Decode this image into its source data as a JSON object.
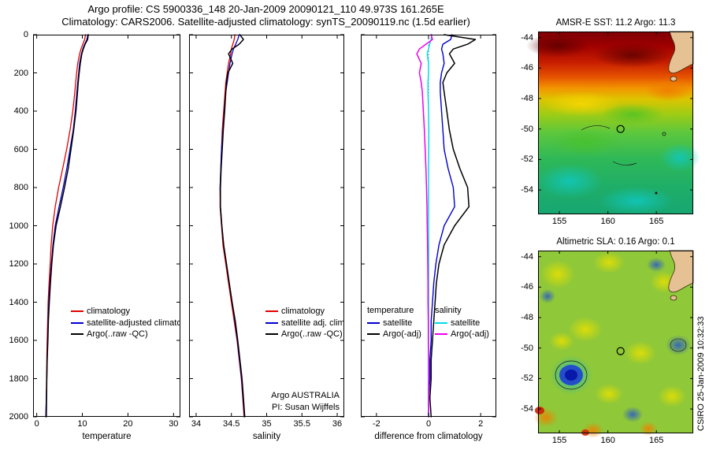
{
  "header": {
    "line1": "Argo profile: CS 5900336_148 20-Jan-2009 20090121_110 49.973S 161.265E",
    "line2": "Climatology: CARS2006. Satellite-adjusted climatology: synTS_20090119.nc (1.5d earlier)"
  },
  "credit": "CSIRO 25-Jan-2009 10:32:33",
  "colors": {
    "climatology": "#e30000",
    "satellite_adjusted": "#0000cc",
    "argo": "#000000",
    "salinity_satellite": "#00dce8",
    "salinity_argo": "#ee00ee",
    "land": "#e6c193",
    "marker": "#000000"
  },
  "chart_data": [
    {
      "id": "temperature",
      "type": "line",
      "xlabel": "temperature",
      "xlim": [
        -0.8,
        31.5
      ],
      "ylim": [
        0,
        2000
      ],
      "xticks": [
        0,
        10,
        20,
        30
      ],
      "yticks": [
        0,
        200,
        400,
        600,
        800,
        1000,
        1200,
        1400,
        1600,
        1800,
        2000
      ],
      "show_ylabels": true,
      "depths": [
        0,
        25,
        50,
        75,
        100,
        150,
        200,
        250,
        300,
        400,
        500,
        600,
        700,
        800,
        900,
        1000,
        1100,
        1200,
        1300,
        1400,
        1500,
        1600,
        1700,
        1800,
        1900,
        2000
      ],
      "series": [
        {
          "name": "climatology",
          "color": "#e30000",
          "width": 1.3,
          "values": [
            10.7,
            10.5,
            10.1,
            9.7,
            9.4,
            9.0,
            8.75,
            8.55,
            8.35,
            7.9,
            7.3,
            6.55,
            5.7,
            4.8,
            4.05,
            3.5,
            3.15,
            2.95,
            2.7,
            2.5,
            2.4,
            2.3,
            2.2,
            2.15,
            2.1,
            2.0
          ]
        },
        {
          "name": "satellite-adjusted climatology",
          "color": "#0000cc",
          "width": 1.3,
          "values": [
            11.2,
            11.0,
            10.5,
            10.1,
            9.8,
            9.4,
            9.2,
            9.0,
            8.8,
            8.45,
            8.0,
            7.3,
            6.6,
            5.8,
            4.9,
            4.05,
            3.55,
            3.2,
            2.9,
            2.65,
            2.5,
            2.4,
            2.3,
            2.2,
            2.1,
            2.0
          ]
        },
        {
          "name": "Argo(..raw -QC)",
          "color": "#000000",
          "width": 1.5,
          "values": [
            11.3,
            11.15,
            10.6,
            10.2,
            9.9,
            9.55,
            9.3,
            9.1,
            8.95,
            8.6,
            8.1,
            7.5,
            6.9,
            6.1,
            5.2,
            4.25,
            3.65,
            3.3,
            3.0,
            2.75,
            2.55,
            2.45,
            2.3,
            2.2,
            2.15,
            2.1
          ]
        }
      ],
      "legend": {
        "y": 344,
        "columns": [
          {
            "x": 48,
            "header": null,
            "items": [
              {
                "label": "climatology",
                "color": "#e30000"
              },
              {
                "label": "satellite-adjusted climatology",
                "color": "#0000cc"
              },
              {
                "label": "Argo(..raw -QC)",
                "color": "#000000"
              }
            ]
          }
        ]
      }
    },
    {
      "id": "salinity",
      "type": "line",
      "xlabel": "salinity",
      "xlim": [
        33.9,
        36.1
      ],
      "ylim": [
        0,
        2000
      ],
      "xticks": [
        34,
        34.5,
        35,
        35.5,
        36
      ],
      "yticks": [
        0,
        200,
        400,
        600,
        800,
        1000,
        1200,
        1400,
        1600,
        1800,
        2000
      ],
      "show_ylabels": false,
      "depths": [
        0,
        25,
        50,
        75,
        100,
        150,
        200,
        250,
        300,
        400,
        500,
        600,
        700,
        800,
        900,
        1000,
        1100,
        1200,
        1300,
        1400,
        1500,
        1600,
        1700,
        1800,
        1900,
        2000
      ],
      "series": [
        {
          "name": "climatology",
          "color": "#e30000",
          "width": 1.3,
          "values": [
            34.55,
            34.54,
            34.52,
            34.5,
            34.49,
            34.46,
            34.44,
            34.42,
            34.41,
            34.39,
            34.37,
            34.36,
            34.35,
            34.34,
            34.34,
            34.36,
            34.38,
            34.42,
            34.46,
            34.5,
            34.54,
            34.58,
            34.61,
            34.64,
            34.66,
            34.68
          ]
        },
        {
          "name": "satellite adj. clim.",
          "color": "#0000cc",
          "width": 1.3,
          "values": [
            34.61,
            34.59,
            34.56,
            34.53,
            34.51,
            34.48,
            34.46,
            34.44,
            34.42,
            34.4,
            34.38,
            34.36,
            34.35,
            34.34,
            34.345,
            34.365,
            34.39,
            34.43,
            34.47,
            34.51,
            34.55,
            34.585,
            34.615,
            34.645,
            34.665,
            34.685
          ]
        },
        {
          "name": "Argo(..raw -QC)",
          "color": "#000000",
          "width": 1.5,
          "values": [
            34.62,
            34.67,
            34.61,
            34.51,
            34.46,
            34.52,
            34.45,
            34.43,
            34.42,
            34.405,
            34.385,
            34.37,
            34.355,
            34.345,
            34.345,
            34.365,
            34.39,
            34.43,
            34.47,
            34.51,
            34.555,
            34.59,
            34.62,
            34.65,
            34.67,
            34.69
          ]
        }
      ],
      "legend": {
        "y": 344,
        "columns": [
          {
            "x": 97,
            "header": null,
            "items": [
              {
                "label": "climatology",
                "color": "#e30000"
              },
              {
                "label": "satellite adj. clim.",
                "color": "#0000cc"
              },
              {
                "label": "Argo(..raw -QC)",
                "color": "#000000"
              }
            ]
          }
        ]
      },
      "annotations": [
        {
          "text": "Argo AUSTRALIA"
        },
        {
          "text": "PI: Susan Wijffels"
        }
      ]
    },
    {
      "id": "difference",
      "type": "line",
      "xlabel": "difference from climatology",
      "xlim": [
        -2.6,
        2.6
      ],
      "ylim": [
        0,
        2000
      ],
      "xticks": [
        -2,
        0,
        2
      ],
      "yticks": [
        0,
        200,
        400,
        600,
        800,
        1000,
        1200,
        1400,
        1600,
        1800,
        2000
      ],
      "show_ylabels": false,
      "zero_line": true,
      "depths": [
        0,
        25,
        50,
        75,
        100,
        150,
        200,
        250,
        300,
        400,
        500,
        600,
        700,
        800,
        900,
        1000,
        1100,
        1200,
        1300,
        1400,
        1500,
        1600,
        1700,
        1800,
        1900,
        2000
      ],
      "series": [
        {
          "name": "temperature satellite",
          "color": "#0000cc",
          "width": 1.4,
          "values": [
            0.9,
            0.85,
            0.55,
            0.5,
            0.55,
            0.6,
            0.5,
            0.45,
            0.45,
            0.5,
            0.55,
            0.6,
            0.75,
            0.95,
            1.0,
            0.6,
            0.4,
            0.28,
            0.2,
            0.15,
            0.1,
            0.1,
            0.05,
            0.05,
            0.0,
            0.0
          ]
        },
        {
          "name": "temperature Argo(-adj)",
          "color": "#000000",
          "width": 1.5,
          "values": [
            0.6,
            1.8,
            1.5,
            0.95,
            0.8,
            1.0,
            0.7,
            0.55,
            0.6,
            0.7,
            0.8,
            0.95,
            1.2,
            1.5,
            1.55,
            1.0,
            0.6,
            0.4,
            0.3,
            0.25,
            0.2,
            0.15,
            0.1,
            0.1,
            0.05,
            0.1
          ]
        },
        {
          "name": "salinity satellite",
          "color": "#00dce8",
          "width": 1.5,
          "values": [
            0.12,
            0.1,
            0.04,
            0.0,
            -0.05,
            0.0,
            0.0,
            -0.02,
            -0.02,
            0.0,
            0.01,
            0.01,
            0.0,
            0.0,
            0.0,
            0.0,
            0.0,
            0.0,
            0.0,
            0.0,
            0.0,
            0.0,
            0.0,
            0.0,
            0.0,
            0.0
          ]
        },
        {
          "name": "salinity Argo(-adj)",
          "color": "#ee00ee",
          "width": 1.5,
          "values": [
            0.1,
            0.15,
            -0.1,
            -0.35,
            -0.45,
            -0.28,
            -0.35,
            -0.28,
            -0.24,
            -0.2,
            -0.16,
            -0.13,
            -0.1,
            -0.08,
            -0.06,
            -0.05,
            -0.04,
            -0.03,
            -0.02,
            -0.02,
            -0.01,
            -0.01,
            0.0,
            0.0,
            0.0,
            0.0
          ]
        }
      ],
      "legend": {
        "y": 344,
        "columns": [
          {
            "x": 8,
            "header": "temperature",
            "items": [
              {
                "label": "satellite",
                "color": "#0000cc"
              },
              {
                "label": "Argo(-adj)",
                "color": "#000000"
              }
            ]
          },
          {
            "x": 94,
            "header": "salinity",
            "items": [
              {
                "label": "satellite",
                "color": "#00dce8"
              },
              {
                "label": "Argo(-adj)",
                "color": "#ee00ee"
              }
            ]
          }
        ]
      }
    },
    {
      "id": "sst_map",
      "type": "heatmap",
      "title": "AMSR-E SST: 11.2 Argo: 11.3",
      "lon_range": [
        152.8,
        168.8
      ],
      "lat_range": [
        -43.6,
        -55.6
      ],
      "xticks": [
        155,
        160,
        165
      ],
      "yticks": [
        -44,
        -46,
        -48,
        -50,
        -52,
        -54
      ],
      "marker": {
        "lon": 161.3,
        "lat": -50.0
      }
    },
    {
      "id": "sla_map",
      "type": "heatmap",
      "title": "Altimetric SLA: 0.16 Argo: 0.1",
      "lon_range": [
        152.8,
        168.8
      ],
      "lat_range": [
        -43.6,
        -55.6
      ],
      "xticks": [
        155,
        160,
        165
      ],
      "yticks": [
        -44,
        -46,
        -48,
        -50,
        -52,
        -54
      ],
      "marker": {
        "lon": 161.3,
        "lat": -50.2
      }
    }
  ]
}
